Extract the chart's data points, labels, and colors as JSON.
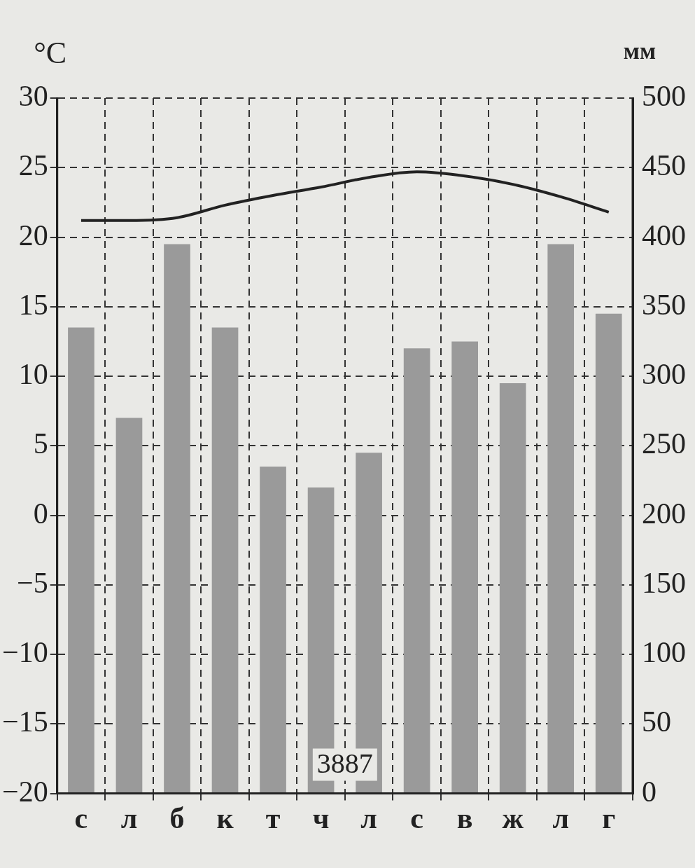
{
  "chart_data": {
    "type": "bar",
    "ylabel": "°C",
    "y2label": "мм",
    "categories": [
      "с",
      "л",
      "б",
      "к",
      "т",
      "ч",
      "л",
      "с",
      "в",
      "ж",
      "л",
      "г"
    ],
    "series": [
      {
        "axis": "y2",
        "color": "#9a9a9a",
        "values": [
          335,
          270,
          395,
          335,
          235,
          220,
          245,
          320,
          325,
          295,
          395,
          345
        ]
      },
      {
        "type": "line",
        "axis": "y",
        "color": "#222222",
        "values": [
          21.2,
          21.2,
          21.4,
          22.3,
          23.0,
          23.6,
          24.3,
          24.7,
          24.4,
          23.8,
          22.9,
          21.8
        ]
      }
    ],
    "ylim": [
      -20,
      30
    ],
    "yticks": [
      -20,
      -15,
      -10,
      -5,
      0,
      5,
      10,
      15,
      20,
      25,
      30
    ],
    "y2lim": [
      0,
      500
    ],
    "y2ticks": [
      0,
      50,
      100,
      150,
      200,
      250,
      300,
      350,
      400,
      450,
      500
    ],
    "grid": true,
    "legend": false,
    "marker": "none",
    "annotations": [
      "3887"
    ]
  }
}
